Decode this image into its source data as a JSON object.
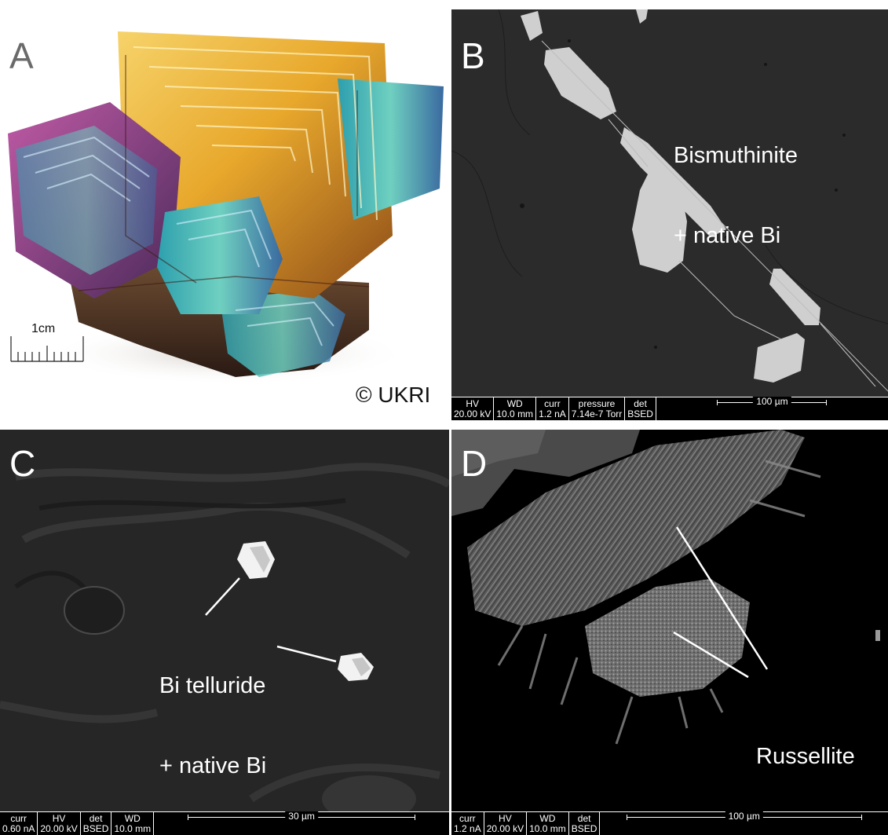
{
  "panels": {
    "a": {
      "letter": "A",
      "scale_label": "1cm",
      "copyright": "© UKRI"
    },
    "b": {
      "letter": "B",
      "annotation": [
        "Bismuthinite",
        "+ native Bi"
      ],
      "databar": [
        {
          "label": "HV",
          "value": "20.00 kV"
        },
        {
          "label": "WD",
          "value": "10.0 mm"
        },
        {
          "label": "curr",
          "value": "1.2 nA"
        },
        {
          "label": "pressure",
          "value": "7.14e-7 Torr"
        },
        {
          "label": "det",
          "value": "BSED"
        }
      ],
      "scale": "100 µm"
    },
    "c": {
      "letter": "C",
      "annotation": [
        "Bi telluride",
        "+ native Bi"
      ],
      "databar": [
        {
          "label": "curr",
          "value": "0.60 nA"
        },
        {
          "label": "HV",
          "value": "20.00 kV"
        },
        {
          "label": "det",
          "value": "BSED"
        },
        {
          "label": "WD",
          "value": "10.0 mm"
        }
      ],
      "scale": "30 µm"
    },
    "d": {
      "letter": "D",
      "annotation": [
        "Russellite"
      ],
      "databar": [
        {
          "label": "curr",
          "value": "1.2 nA"
        },
        {
          "label": "HV",
          "value": "20.00 kV"
        },
        {
          "label": "WD",
          "value": "10.0 mm"
        },
        {
          "label": "det",
          "value": "BSED"
        }
      ],
      "scale": "100 µm"
    }
  },
  "colors": {
    "sem_background": "#2b2b2b",
    "crystal_gold": "#e8b030",
    "crystal_cyan": "#3fb8c8",
    "crystal_magenta": "#b04a9a"
  }
}
